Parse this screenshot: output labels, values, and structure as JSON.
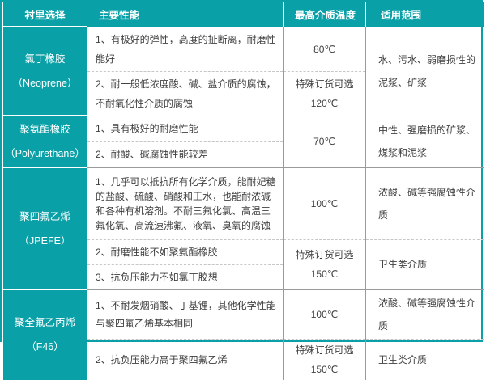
{
  "accent_color": "#0aa0a7",
  "grid_color": "#9a9a9a",
  "header": {
    "col1": "衬里选择",
    "col2": "主要性能",
    "col3": "最高介质温度",
    "col4": "适用范围"
  },
  "groups": {
    "g1": {
      "name": "氯丁橡胶",
      "name_en": "（Neoprene）",
      "perf1": "1、有极好的弹性，高度的扯断离，耐磨性能好",
      "perf2": "2、耐一般低浓度酸、碱、盐介质的腐蚀，不耐氧化性介质的腐蚀",
      "temp1": "80℃",
      "temp2_line1": "特殊订货可选",
      "temp2_line2": "120℃",
      "range": "水、污水、弱磨损性的泥浆、矿浆"
    },
    "g2": {
      "name": "聚氨酯橡胶",
      "name_en": "（Polyurethane）",
      "perf1": "1、具有极好的耐磨性能",
      "perf2": "2、耐酸、碱腐蚀性能较差",
      "temp": "70℃",
      "range": "中性、强磨损的矿浆、煤浆和泥浆"
    },
    "g3": {
      "name": "聚四氟乙烯",
      "name_en": "（JPEFE）",
      "perf1": "1、几乎可以抵抗所有化学介质，能耐妃糖的盐酸、硫酸、硝酸和王水，也能耐浓碱和各种有机溶剂。不耐三氟化氯、高温三氟化氧、高流速沸氟、液氧、臭氧的腐蚀",
      "perf2": "2、耐磨性能不如聚氨酯橡胶",
      "perf3": "3、抗负压能力不如氯丁胶想",
      "temp1": "100℃",
      "temp2_line1": "特殊订货可选",
      "temp2_line2": "150℃",
      "range1": "浓酸、碱等强腐蚀性介质",
      "range2": "卫生类介质"
    },
    "g4": {
      "name": "聚全氟乙丙烯",
      "name_en": "（F46）",
      "perf1": "1、不耐发烟硝酸、丁基锂，其他化学性能与聚四氟乙烯基本相同",
      "perf2": "2、抗负压能力高于聚四氟乙烯",
      "temp1": "100℃",
      "temp2_line1": "特殊订货可选",
      "temp2_line2": "150℃",
      "range1": "浓酸、碱等强腐蚀性介质",
      "range2": "卫生类介质"
    }
  }
}
